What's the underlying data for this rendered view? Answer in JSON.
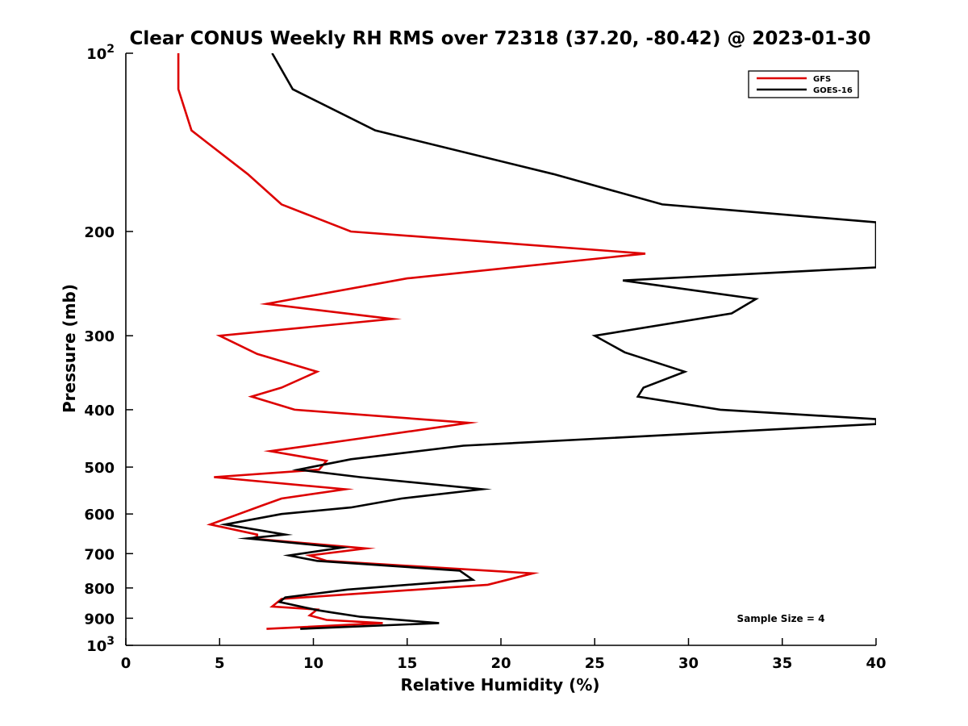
{
  "chart_data": {
    "type": "line",
    "orientation": "vertical-profile",
    "title": "Clear CONUS Weekly RH RMS over 72318 (37.20, -80.42) @ 2023-01-30",
    "xlabel": "Relative Humidity (%)",
    "ylabel": "Pressure (mb)",
    "xlim": [
      0,
      40
    ],
    "ylim": [
      100,
      1000
    ],
    "y_scale": "log",
    "y_reversed": true,
    "x_ticks": [
      "0",
      "5",
      "10",
      "15",
      "20",
      "25",
      "30",
      "35",
      "40"
    ],
    "y_ticks": [
      {
        "value": 100,
        "base": "10",
        "exp": "2",
        "label": ""
      },
      {
        "value": 200,
        "label": "200"
      },
      {
        "value": 300,
        "label": "300"
      },
      {
        "value": 400,
        "label": "400"
      },
      {
        "value": 500,
        "label": "500"
      },
      {
        "value": 600,
        "label": "600"
      },
      {
        "value": 700,
        "label": "700"
      },
      {
        "value": 800,
        "label": "800"
      },
      {
        "value": 900,
        "label": "900"
      },
      {
        "value": 1000,
        "base": "10",
        "exp": "3",
        "label": ""
      }
    ],
    "grid": false,
    "legend_position": "top-right",
    "annotation": "Sample Size = 4",
    "series": [
      {
        "name": "GFS",
        "color": "#dd0000",
        "points": [
          [
            2.8,
            100
          ],
          [
            2.8,
            115
          ],
          [
            3.5,
            135
          ],
          [
            6.5,
            160
          ],
          [
            8.3,
            180
          ],
          [
            12,
            200
          ],
          [
            27.7,
            218
          ],
          [
            15,
            240
          ],
          [
            7.5,
            265
          ],
          [
            14.2,
            281
          ],
          [
            5,
            300
          ],
          [
            7,
            322
          ],
          [
            10.2,
            345
          ],
          [
            8.3,
            367
          ],
          [
            6.7,
            380
          ],
          [
            9,
            400
          ],
          [
            18.3,
            421
          ],
          [
            13,
            445
          ],
          [
            7.7,
            470
          ],
          [
            10.7,
            488
          ],
          [
            10.3,
            505
          ],
          [
            4.7,
            520
          ],
          [
            11.7,
            545
          ],
          [
            8.3,
            565
          ],
          [
            7.3,
            580
          ],
          [
            4.5,
            625
          ],
          [
            7,
            650
          ],
          [
            7,
            655
          ],
          [
            6.7,
            660
          ],
          [
            12.8,
            686
          ],
          [
            9.8,
            705
          ],
          [
            10.7,
            720
          ],
          [
            21.7,
            756
          ],
          [
            19.3,
            790
          ],
          [
            8.3,
            835
          ],
          [
            7.8,
            860
          ],
          [
            10.2,
            870
          ],
          [
            9.8,
            890
          ],
          [
            10.7,
            906
          ],
          [
            13.7,
            917
          ],
          [
            7.5,
            938
          ]
        ]
      },
      {
        "name": "GOES-16",
        "color": "#000000",
        "points": [
          [
            7.8,
            100
          ],
          [
            8.9,
            115
          ],
          [
            13.3,
            135
          ],
          [
            22.8,
            160
          ],
          [
            28.6,
            180
          ],
          [
            40,
            193
          ],
          [
            40,
            230
          ],
          [
            26.5,
            242
          ],
          [
            33.6,
            260
          ],
          [
            32.3,
            275
          ],
          [
            25,
            300
          ],
          [
            26.6,
            320
          ],
          [
            29.8,
            345
          ],
          [
            27.6,
            367
          ],
          [
            27.3,
            380
          ],
          [
            31.7,
            400
          ],
          [
            40,
            415
          ],
          [
            40,
            423
          ],
          [
            18,
            460
          ],
          [
            12,
            485
          ],
          [
            9.2,
            505
          ],
          [
            12.5,
            520
          ],
          [
            19,
            545
          ],
          [
            14.7,
            565
          ],
          [
            12,
            585
          ],
          [
            8.3,
            600
          ],
          [
            5.3,
            625
          ],
          [
            8.5,
            650
          ],
          [
            6.5,
            660
          ],
          [
            11.5,
            684
          ],
          [
            8.7,
            705
          ],
          [
            10.2,
            720
          ],
          [
            17.8,
            748
          ],
          [
            18.5,
            775
          ],
          [
            11.8,
            805
          ],
          [
            8.5,
            830
          ],
          [
            8.2,
            845
          ],
          [
            10.2,
            872
          ],
          [
            11,
            880
          ],
          [
            12.5,
            895
          ],
          [
            16.7,
            917
          ],
          [
            9.3,
            938
          ]
        ]
      }
    ]
  }
}
